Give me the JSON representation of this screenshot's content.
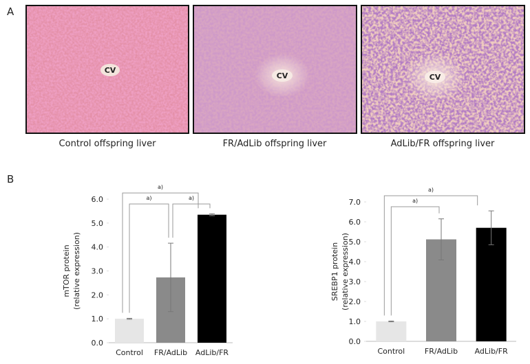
{
  "panel_a": {
    "label": "A",
    "images": [
      {
        "caption": "Control offspring liver",
        "marker": "CV"
      },
      {
        "caption": "FR/AdLib offspring liver",
        "marker": "CV"
      },
      {
        "caption": "AdLib/FR offspring liver",
        "marker": "CV"
      }
    ]
  },
  "panel_b": {
    "label": "B"
  },
  "chart_data": [
    {
      "type": "bar",
      "y_label": [
        "mTOR protein",
        "(relative expression)"
      ],
      "categories": [
        "Control",
        "FR/AdLib",
        "AdLib/FR"
      ],
      "values": [
        1.0,
        2.73,
        5.35
      ],
      "errors": [
        0.02,
        1.43,
        0.04
      ],
      "colors": [
        "#e6e6e6",
        "#8a8a8a",
        "#000000"
      ],
      "ylim": [
        0,
        6
      ],
      "yticks": [
        {
          "value": 0,
          "label": "0.0"
        },
        {
          "value": 1,
          "label": "1.0"
        },
        {
          "value": 2,
          "label": "2.0"
        },
        {
          "value": 3,
          "label": "3.0"
        },
        {
          "value": 4,
          "label": "4.0"
        },
        {
          "value": 5,
          "label": "5.0"
        },
        {
          "value": 6,
          "label": "6.0"
        }
      ],
      "annotations": [
        {
          "text": "a)",
          "from": 0,
          "to": 2
        },
        {
          "text": "a)",
          "from": 0,
          "to": 1
        },
        {
          "text": "a)",
          "from": 1,
          "to": 2
        }
      ]
    },
    {
      "type": "bar",
      "y_label": [
        "SREBP1 protein",
        "(relative expression)"
      ],
      "categories": [
        "Control",
        "FR/AdLib",
        "AdLib/FR"
      ],
      "values": [
        1.0,
        5.12,
        5.7
      ],
      "errors": [
        0.02,
        1.03,
        0.85
      ],
      "colors": [
        "#e6e6e6",
        "#8a8a8a",
        "#000000"
      ],
      "ylim": [
        0,
        7
      ],
      "yticks": [
        {
          "value": 0,
          "label": "0.0"
        },
        {
          "value": 1,
          "label": "1.0"
        },
        {
          "value": 2,
          "label": "2.0"
        },
        {
          "value": 3,
          "label": "3.0"
        },
        {
          "value": 4,
          "label": "4.0"
        },
        {
          "value": 5,
          "label": "5.0"
        },
        {
          "value": 6,
          "label": "6.0"
        },
        {
          "value": 7,
          "label": "7.0"
        }
      ],
      "annotations": [
        {
          "text": "a)",
          "from": 0,
          "to": 2
        },
        {
          "text": "a)",
          "from": 0,
          "to": 1
        }
      ]
    }
  ]
}
